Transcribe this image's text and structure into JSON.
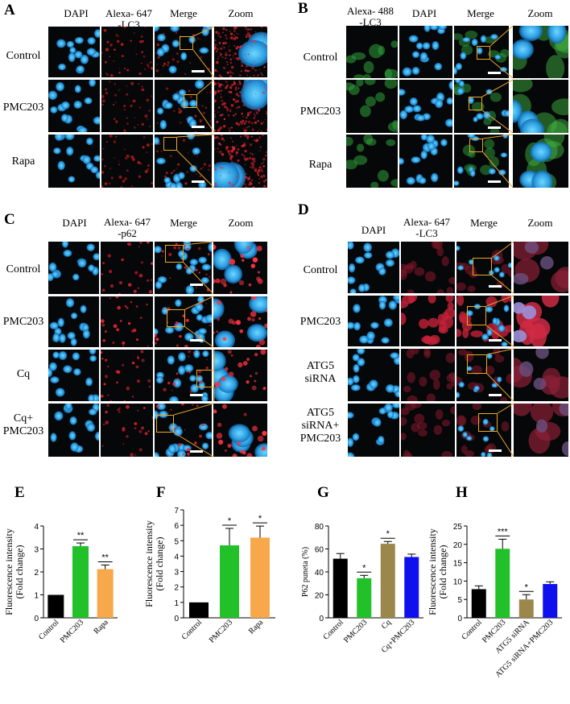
{
  "panels": {
    "A": {
      "label": "A",
      "columns": [
        "DAPI",
        "Alexa- 647\n-LC3",
        "Merge",
        "Zoom"
      ],
      "rows": [
        "Control",
        "PMC203",
        "Rapa"
      ]
    },
    "B": {
      "label": "B",
      "columns": [
        "Alexa- 488\n-LC3",
        "DAPI",
        "Merge",
        "Zoom"
      ],
      "rows": [
        "Control",
        "PMC203",
        "Rapa"
      ]
    },
    "C": {
      "label": "C",
      "columns": [
        "DAPI",
        "Alexa- 647\n-p62",
        "Merge",
        "Zoom"
      ],
      "rows": [
        "Control",
        "PMC203",
        "Cq",
        "Cq+\nPMC203"
      ]
    },
    "D": {
      "label": "D",
      "columns": [
        "DAPI",
        "Alexa- 647\n-LC3",
        "Merge",
        "Zoom"
      ],
      "rows": [
        "Control",
        "PMC203",
        "ATG5\nsiRNA",
        "ATG5\nsiRNA+\nPMC203"
      ]
    }
  },
  "chart_data": [
    {
      "label": "E",
      "type": "bar",
      "ylabel": "Fluorescence intensity\n(Fold change)",
      "ylim": [
        0,
        4
      ],
      "yticks": [
        0,
        1,
        2,
        3,
        4
      ],
      "categories": [
        "Control",
        "PMC203",
        "Rapa"
      ],
      "values": [
        1.0,
        3.12,
        2.12
      ],
      "errors": [
        0,
        0.14,
        0.18
      ],
      "significance": [
        "",
        "**",
        "**"
      ],
      "colors": [
        "#000000",
        "#22c12a",
        "#f7a84a"
      ]
    },
    {
      "label": "F",
      "type": "bar",
      "ylabel": "Fluorescence intensity\n(Fold change)",
      "ylim": [
        0,
        7
      ],
      "yticks": [
        0,
        1,
        2,
        3,
        4,
        5,
        6,
        7
      ],
      "categories": [
        "Control",
        "PMC203",
        "Rapa"
      ],
      "values": [
        1.0,
        4.7,
        5.2
      ],
      "errors": [
        0,
        1.1,
        0.75
      ],
      "significance": [
        "",
        "*",
        "*"
      ],
      "colors": [
        "#000000",
        "#22c12a",
        "#f7a84a"
      ]
    },
    {
      "label": "G",
      "type": "bar",
      "ylabel": "P62 puneta (%)",
      "ylim": [
        0,
        80
      ],
      "yticks": [
        0,
        20,
        40,
        60,
        80
      ],
      "categories": [
        "Control",
        "PMC203",
        "Cq",
        "Cq+PMC203"
      ],
      "values": [
        51.5,
        34.5,
        64.5,
        53
      ],
      "errors": [
        4.5,
        2.5,
        2,
        2.5
      ],
      "significance": [
        "",
        "*",
        "*",
        ""
      ],
      "colors": [
        "#000000",
        "#22c12a",
        "#9c874b",
        "#1010ee"
      ]
    },
    {
      "label": "H",
      "type": "bar",
      "ylabel": "Fluorescence intensity\n(Fold change)",
      "ylim": [
        0,
        25
      ],
      "yticks": [
        0,
        5,
        10,
        15,
        20,
        25
      ],
      "categories": [
        "Control",
        "PMC203",
        "ATG5 siRNA",
        "ATG5 siRNA+PMC203"
      ],
      "values": [
        7.8,
        18.8,
        5.0,
        9.2
      ],
      "errors": [
        0.9,
        2.6,
        1.3,
        0.6
      ],
      "significance": [
        "",
        "***",
        "*",
        ""
      ],
      "colors": [
        "#000000",
        "#22c12a",
        "#9c874b",
        "#1010ee"
      ]
    }
  ]
}
